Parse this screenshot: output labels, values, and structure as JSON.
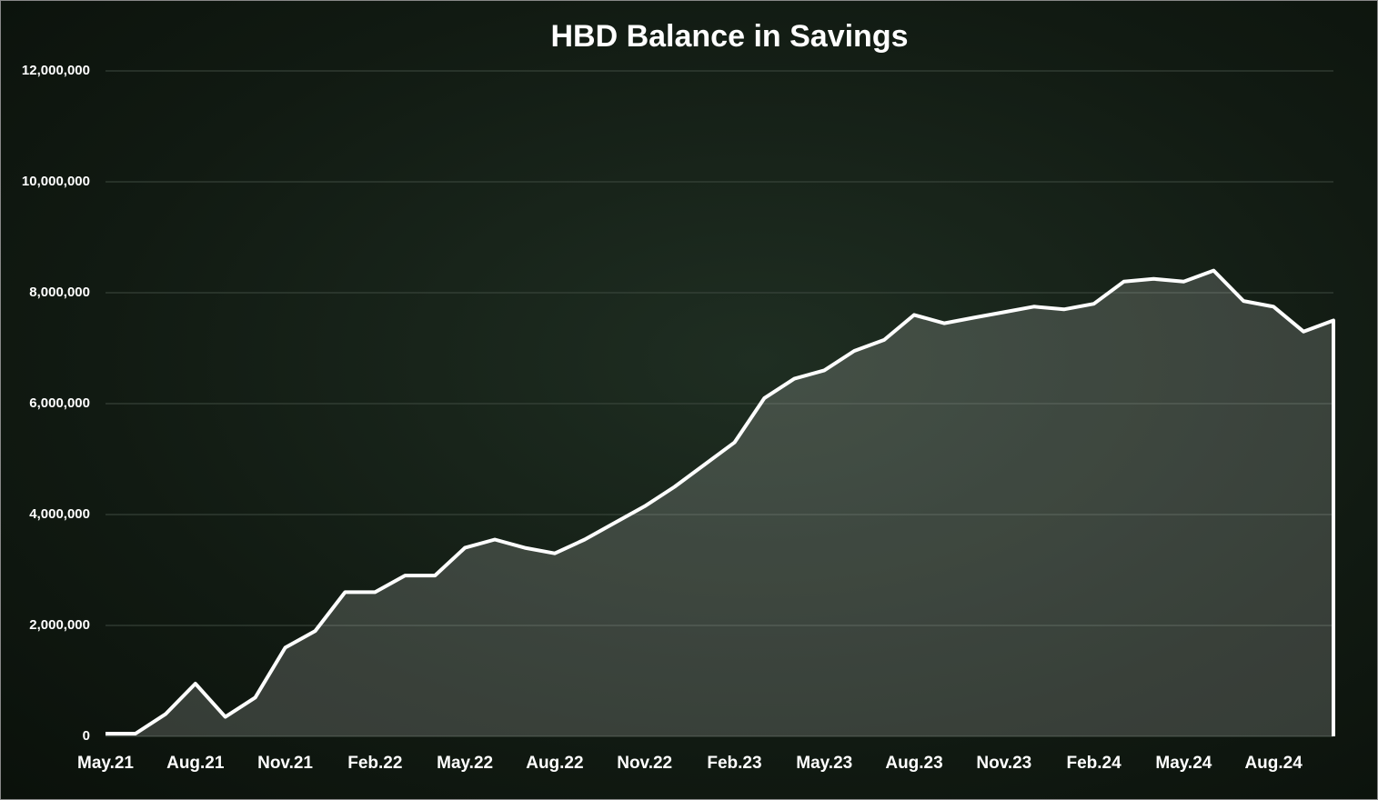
{
  "chart_data": {
    "type": "area",
    "title": "HBD Balance in Savings",
    "categories": [
      "May.21",
      null,
      null,
      "Aug.21",
      null,
      null,
      "Nov.21",
      null,
      null,
      "Feb.22",
      null,
      null,
      "May.22",
      null,
      null,
      "Aug.22",
      null,
      null,
      "Nov.22",
      null,
      null,
      "Feb.23",
      null,
      null,
      "May.23",
      null,
      null,
      "Aug.23",
      null,
      null,
      "Nov.23",
      null,
      null,
      "Feb.24",
      null,
      null,
      "May.24",
      null,
      null,
      "Aug.24",
      null,
      null
    ],
    "values": [
      50000,
      50000,
      400000,
      950000,
      350000,
      700000,
      1600000,
      1900000,
      2600000,
      2600000,
      2900000,
      2900000,
      3400000,
      3550000,
      3400000,
      3300000,
      3550000,
      3850000,
      4150000,
      4500000,
      4900000,
      5300000,
      6100000,
      6450000,
      6600000,
      6950000,
      7150000,
      7600000,
      7450000,
      7550000,
      7650000,
      7750000,
      7700000,
      7800000,
      8200000,
      8250000,
      8200000,
      8400000,
      7850000,
      7750000,
      7300000,
      7500000
    ],
    "color": "#ffffff",
    "ylim": [
      0,
      12000000
    ],
    "yticks": [
      0,
      {
        "value": 2000000,
        "label": "2,000,000"
      },
      {
        "value": 4000000,
        "label": "4,000,000"
      },
      {
        "value": 6000000,
        "label": "6,000,000"
      },
      {
        "value": 8000000,
        "label": "8,000,000"
      },
      {
        "value": 10000000,
        "label": "10,000,000"
      },
      {
        "value": 12000000,
        "label": "12,000,000"
      }
    ],
    "grid": true
  }
}
